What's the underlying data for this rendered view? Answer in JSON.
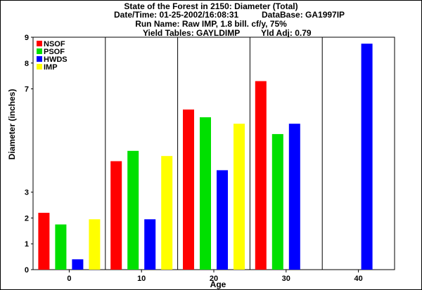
{
  "chart_data": {
    "type": "bar",
    "title": "State of the Forest in 2150: Diameter (Total)",
    "info": {
      "datetime": "Date/Time: 01-25-2002/16:08:31",
      "database": "DataBase: GA1997IP",
      "run_name": "Run Name: Raw IMP, 1.8 bill. cf/y, 75%",
      "yield_tables": "Yield Tables: GAYLDIMP",
      "yld_adj": "Yld Adj: 0.79"
    },
    "xlabel": "Age",
    "ylabel": "Diameter (inches)",
    "categories": [
      "0",
      "10",
      "20",
      "30",
      "40"
    ],
    "ylim": [
      0,
      9
    ],
    "yticks": [
      "0",
      "1",
      "2",
      "3",
      "7",
      "8",
      "9"
    ],
    "ytick_values": [
      0,
      1,
      2,
      3,
      7,
      8,
      9
    ],
    "legend_position": "top-left",
    "grid": false,
    "series": [
      {
        "name": "NSOF",
        "color": "#ff0000",
        "values": [
          2.2,
          4.2,
          6.2,
          7.3,
          null
        ]
      },
      {
        "name": "PSOF",
        "color": "#00e000",
        "values": [
          1.75,
          4.6,
          5.9,
          5.25,
          null
        ]
      },
      {
        "name": "HWDS",
        "color": "#0000ff",
        "values": [
          0.4,
          1.95,
          3.85,
          5.65,
          8.75
        ]
      },
      {
        "name": "IMP",
        "color": "#ffff00",
        "values": [
          1.95,
          4.4,
          5.65,
          null,
          null
        ]
      }
    ]
  }
}
